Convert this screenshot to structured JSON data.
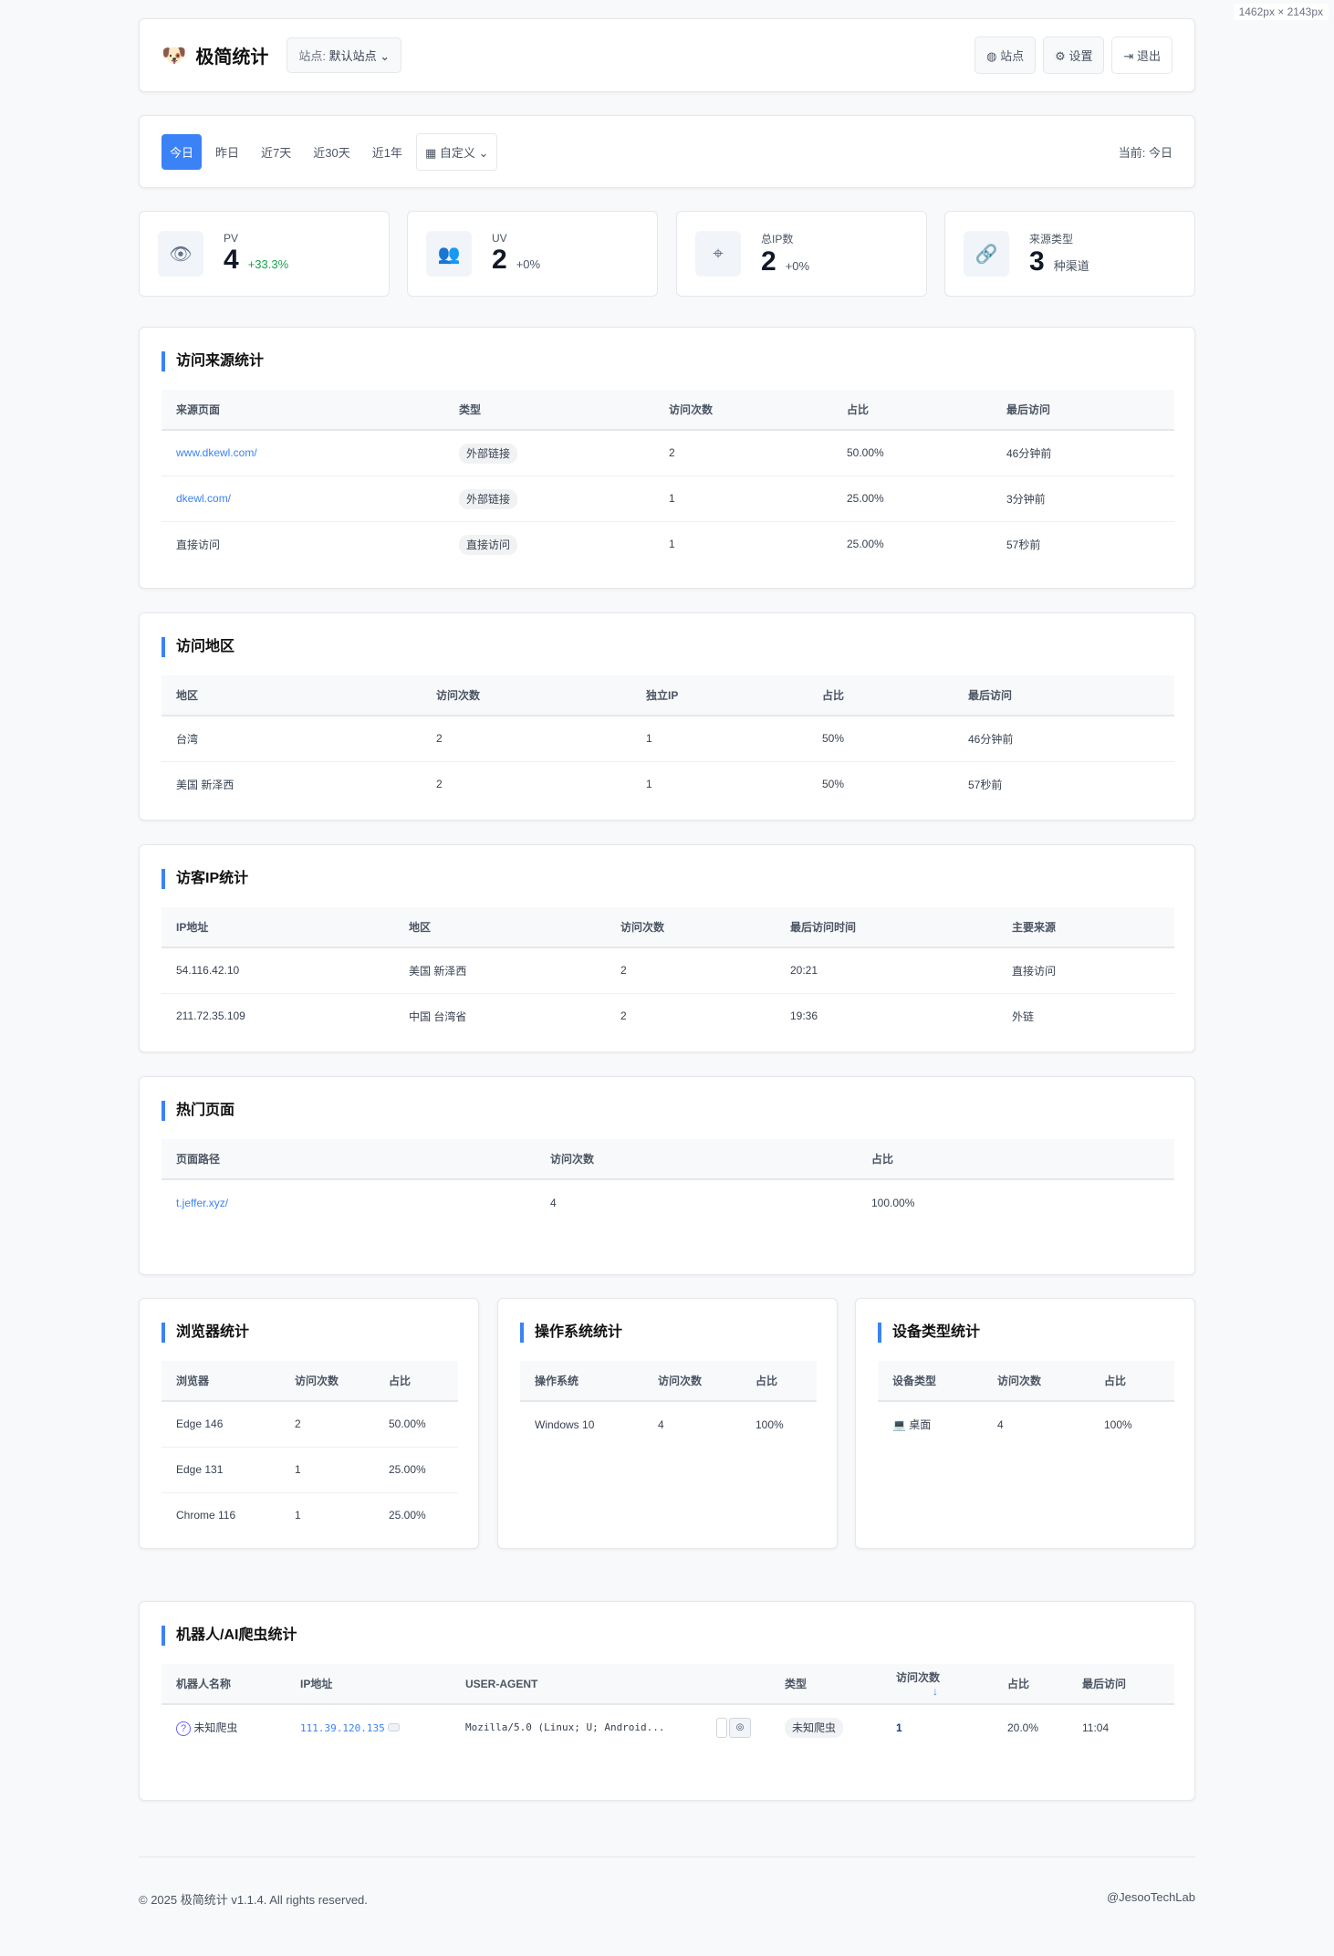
{
  "overlay": "1462px × 2143px",
  "header": {
    "title": "极简统计",
    "site_label": "站点:",
    "site_value": "默认站点",
    "buttons": [
      "站点",
      "设置",
      "退出"
    ]
  },
  "dates": {
    "items": [
      "今日",
      "昨日",
      "近7天",
      "近30天",
      "近1年"
    ],
    "custom": "自定义",
    "current": "当前: 今日"
  },
  "stats": [
    {
      "label": "PV",
      "value": "4",
      "delta": "+33.3%",
      "icon": "eye-icon"
    },
    {
      "label": "UV",
      "value": "2",
      "delta": "+0%",
      "icon": "users-icon"
    },
    {
      "label": "总IP数",
      "value": "2",
      "delta": "+0%",
      "icon": "location-icon"
    },
    {
      "label": "来源类型",
      "value": "3",
      "delta": "种渠道",
      "icon": "link-icon"
    }
  ],
  "sources": {
    "title": "访问来源统计",
    "headers": [
      "来源页面",
      "类型",
      "访问次数",
      "占比",
      "最后访问"
    ],
    "rows": [
      [
        "www.dkewl.com/",
        "外部链接",
        "2",
        "50.00%",
        "46分钟前"
      ],
      [
        "dkewl.com/",
        "外部链接",
        "1",
        "25.00%",
        "3分钟前"
      ],
      [
        "直接访问",
        "直接访问",
        "1",
        "25.00%",
        "57秒前"
      ]
    ]
  },
  "regions": {
    "title": "访问地区",
    "headers": [
      "地区",
      "访问次数",
      "独立IP",
      "占比",
      "最后访问"
    ],
    "rows": [
      [
        "台湾",
        "2",
        "1",
        "50%",
        "46分钟前"
      ],
      [
        "美国 新泽西",
        "2",
        "1",
        "50%",
        "57秒前"
      ]
    ]
  },
  "ips": {
    "title": "访客IP统计",
    "headers": [
      "IP地址",
      "地区",
      "访问次数",
      "最后访问时间",
      "主要来源"
    ],
    "rows": [
      [
        "54.116.42.10",
        "美国 新泽西",
        "2",
        "20:21",
        "直接访问"
      ],
      [
        "211.72.35.109",
        "中国 台湾省",
        "2",
        "19:36",
        "外链"
      ]
    ]
  },
  "pages": {
    "title": "热门页面",
    "headers": [
      "页面路径",
      "访问次数",
      "占比"
    ],
    "rows": [
      [
        "t.jeffer.xyz/",
        "4",
        "100.00%"
      ]
    ]
  },
  "browsers": {
    "title": "浏览器统计",
    "headers": [
      "浏览器",
      "访问次数",
      "占比"
    ],
    "rows": [
      [
        "Edge 146",
        "2",
        "50.00%"
      ],
      [
        "Edge 131",
        "1",
        "25.00%"
      ],
      [
        "Chrome 116",
        "1",
        "25.00%"
      ]
    ]
  },
  "os": {
    "title": "操作系统统计",
    "headers": [
      "操作系统",
      "访问次数",
      "占比"
    ],
    "rows": [
      [
        "Windows 10",
        "4",
        "100%"
      ]
    ]
  },
  "devices": {
    "title": "设备类型统计",
    "headers": [
      "设备类型",
      "访问次数",
      "占比"
    ],
    "rows": [
      [
        "桌面",
        "4",
        "100%"
      ]
    ]
  },
  "bots": {
    "title": "机器人/AI爬虫统计",
    "headers": [
      "机器人名称",
      "IP地址",
      "USER-AGENT",
      "类型",
      "访问次数",
      "占比",
      "最后访问"
    ],
    "rows": [
      [
        "未知爬虫",
        "111.39.120.135",
        "Mozilla/5.0 (Linux; U; Android...",
        "未知爬虫",
        "1",
        "20.0%",
        "11:04"
      ]
    ]
  },
  "footer": {
    "copyright": "© 2025 极简统计 v1.1.4. All rights reserved.",
    "credit": "@JesooTechLab"
  }
}
